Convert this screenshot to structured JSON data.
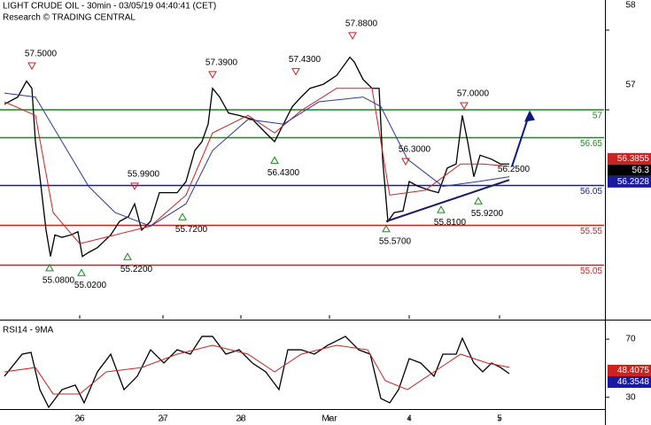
{
  "chart_data": [
    {
      "type": "line",
      "title": "LIGHT CRUDE OIL - 30min - 03/05/19 04:40:41 (CET)",
      "subtitle": "Research © TRADING CENTRAL",
      "xlim": [
        0,
        341
      ],
      "xticks": [
        {
          "value": 45,
          "label": "26"
        },
        {
          "value": 92,
          "label": "27"
        },
        {
          "value": 136,
          "label": "28"
        },
        {
          "value": 186,
          "label": "Mar"
        },
        {
          "value": 231,
          "label": "4"
        },
        {
          "value": 282,
          "label": "5"
        }
      ],
      "ylim": [
        54.378,
        58.378
      ],
      "yticks": [
        57,
        58
      ],
      "series": [
        {
          "color": "#000000",
          "x": [
            2.5,
            10,
            15,
            18,
            20,
            22.5,
            26,
            28.5,
            31,
            35,
            40,
            44,
            46.5,
            50,
            55,
            62.5,
            67.5,
            72.5,
            76,
            80,
            85,
            90,
            100,
            105,
            110,
            114,
            117.5,
            120,
            124,
            129,
            135,
            142.5,
            150,
            155,
            160,
            165,
            170,
            175,
            182.5,
            190,
            197.5,
            200,
            205,
            210,
            214,
            216,
            219,
            222.5,
            227.5,
            231,
            236,
            242.5,
            247.5,
            252.5,
            257.5,
            261,
            264,
            267.5,
            271,
            277.5,
            282.5,
            287.5
          ],
          "values": [
            57.07,
            57.16,
            57.36,
            57.27,
            56.6,
            56.16,
            55.49,
            55.16,
            55.43,
            55.4,
            55.43,
            55.47,
            55.16,
            55.21,
            55.27,
            55.43,
            55.6,
            55.66,
            55.82,
            55.49,
            55.6,
            55.96,
            55.96,
            56.1,
            56.49,
            56.6,
            56.82,
            57.27,
            57.16,
            56.96,
            56.93,
            56.88,
            56.71,
            56.6,
            56.82,
            57.04,
            57.16,
            57.27,
            57.32,
            57.43,
            57.66,
            57.6,
            57.38,
            57.27,
            57.27,
            56.38,
            55.6,
            55.71,
            55.73,
            56.1,
            56.04,
            55.99,
            55.96,
            56.27,
            56.32,
            56.93,
            56.6,
            56.16,
            56.43,
            56.38,
            56.32,
            56.32
          ]
        },
        {
          "color": "#cc2222",
          "x": [
            2.5,
            20,
            30,
            45,
            65,
            85,
            105,
            120,
            140,
            155,
            170,
            190,
            210,
            220,
            240,
            260,
            272.5,
            287.5
          ],
          "values": [
            57.1,
            56.93,
            55.71,
            55.32,
            55.43,
            55.54,
            55.93,
            56.71,
            56.93,
            56.71,
            56.99,
            57.27,
            57.27,
            55.93,
            55.99,
            56.32,
            56.32,
            56.29
          ]
        },
        {
          "color": "#2a3a9a",
          "x": [
            2.5,
            20,
            35,
            50,
            65,
            85,
            105,
            120,
            140,
            160,
            180,
            205,
            215,
            230,
            250,
            270,
            287.5
          ],
          "values": [
            57.21,
            57.16,
            56.6,
            56.04,
            55.71,
            55.54,
            55.82,
            56.49,
            56.88,
            56.82,
            57.1,
            57.16,
            57.04,
            56.38,
            56.04,
            56.1,
            56.16
          ]
        }
      ],
      "levels": [
        {
          "label": "57",
          "value": 57,
          "color": "#1a8a1a"
        },
        {
          "label": "56.65",
          "value": 56.65,
          "color": "#1a8a1a"
        },
        {
          "label": "56.05",
          "value": 56.05,
          "color": "#1a1aa0"
        },
        {
          "label": "55.55",
          "value": 55.55,
          "color": "#cc2222"
        },
        {
          "label": "55.05",
          "value": 55.05,
          "color": "#cc2222"
        }
      ],
      "annotations": [
        {
          "label": "57.5000",
          "value": 57.5,
          "x": 18,
          "kind": "high"
        },
        {
          "label": "55.0800",
          "value": 55.08,
          "x": 28,
          "kind": "low"
        },
        {
          "label": "55.0200",
          "value": 55.02,
          "x": 46,
          "kind": "low"
        },
        {
          "label": "55.2200",
          "value": 55.22,
          "x": 72,
          "kind": "low"
        },
        {
          "label": "55.9900",
          "value": 55.99,
          "x": 76,
          "kind": "high"
        },
        {
          "label": "55.7200",
          "value": 55.72,
          "x": 103,
          "kind": "low"
        },
        {
          "label": "57.3900",
          "value": 57.39,
          "x": 120,
          "kind": "high"
        },
        {
          "label": "56.4300",
          "value": 56.43,
          "x": 155,
          "kind": "low"
        },
        {
          "label": "57.4300",
          "value": 57.43,
          "x": 167,
          "kind": "high"
        },
        {
          "label": "57.8800",
          "value": 57.88,
          "x": 199,
          "kind": "high"
        },
        {
          "label": "55.5700",
          "value": 55.57,
          "x": 218,
          "kind": "low"
        },
        {
          "label": "56.3000",
          "value": 56.3,
          "x": 229,
          "kind": "high"
        },
        {
          "label": "55.8100",
          "value": 55.81,
          "x": 249,
          "kind": "low"
        },
        {
          "label": "57.0000",
          "value": 57.0,
          "x": 262,
          "kind": "high"
        },
        {
          "label": "55.9200",
          "value": 55.92,
          "x": 270,
          "kind": "low"
        },
        {
          "label": "56.2500",
          "value": 56.25,
          "x": 290,
          "kind": "note"
        }
      ],
      "trendline": {
        "x": [
          218,
          287.5
        ],
        "values": [
          55.6,
          56.12
        ],
        "color": "#1a1a60"
      },
      "arrow": {
        "x": [
          289,
          299
        ],
        "values": [
          56.29,
          56.96
        ],
        "color": "#0a1a80"
      },
      "price_labels": [
        {
          "label": "56.3855",
          "value": 56.3855,
          "color": "#cc2222"
        },
        {
          "label": "56.3",
          "value": 56.3,
          "color": "#000000"
        },
        {
          "label": "56.2928",
          "value": 56.2928,
          "color": "#1a1aa0"
        }
      ]
    },
    {
      "type": "line",
      "title": "RSI14 - 9MA",
      "xlim": [
        0,
        341
      ],
      "xticks": [
        {
          "value": 45,
          "label": "26"
        },
        {
          "value": 92,
          "label": "27"
        },
        {
          "value": 136,
          "label": "28"
        },
        {
          "value": 186,
          "label": "Mar"
        },
        {
          "value": 231,
          "label": "4"
        },
        {
          "value": 282,
          "label": "5"
        }
      ],
      "ylim": [
        14,
        81
      ],
      "yticks": [
        30,
        70
      ],
      "series": [
        {
          "color": "#000000",
          "x": [
            2.5,
            12.5,
            17.5,
            22.5,
            27.5,
            35,
            42.5,
            47.5,
            55,
            62.5,
            70,
            77.5,
            85,
            92.5,
            100,
            107.5,
            114,
            120,
            127.5,
            135,
            142.5,
            150,
            157.5,
            162.5,
            170,
            177.5,
            185,
            195,
            202.5,
            209,
            215,
            220,
            225,
            231,
            237.5,
            245,
            250,
            257.5,
            261,
            267.5,
            272.5,
            277.5,
            282.5,
            287.5
          ],
          "values": [
            44.5,
            59.7,
            60.9,
            35.3,
            23.1,
            35.3,
            38.4,
            26.2,
            47.5,
            59.7,
            35.3,
            44.5,
            62.7,
            53.6,
            62.7,
            59.7,
            71.9,
            71.9,
            59.7,
            62.7,
            53.6,
            47.5,
            35.3,
            62.7,
            62.7,
            59.7,
            65.8,
            71.9,
            62.7,
            59.7,
            29.2,
            26.2,
            35.3,
            56.6,
            53.6,
            44.5,
            59.7,
            59.7,
            70.6,
            53.6,
            47.5,
            53.6,
            50.6,
            46.3
          ]
        },
        {
          "color": "#cc2222",
          "x": [
            2.5,
            20,
            30,
            45,
            60,
            80,
            100,
            120,
            140,
            155,
            170,
            190,
            207.5,
            217.5,
            230,
            245,
            260,
            275,
            287.5
          ],
          "values": [
            47.5,
            50.5,
            32.3,
            32.3,
            47.5,
            50.5,
            59.7,
            65.8,
            59.7,
            47.5,
            59.7,
            65.8,
            62.7,
            41.4,
            35.3,
            47.5,
            59.7,
            53.6,
            50.6
          ]
        }
      ],
      "price_labels": [
        {
          "label": "48.4075",
          "value": 48.4075,
          "color": "#cc2222"
        },
        {
          "label": "46.3548",
          "value": 46.3548,
          "color": "#1a1aa0"
        }
      ]
    }
  ]
}
